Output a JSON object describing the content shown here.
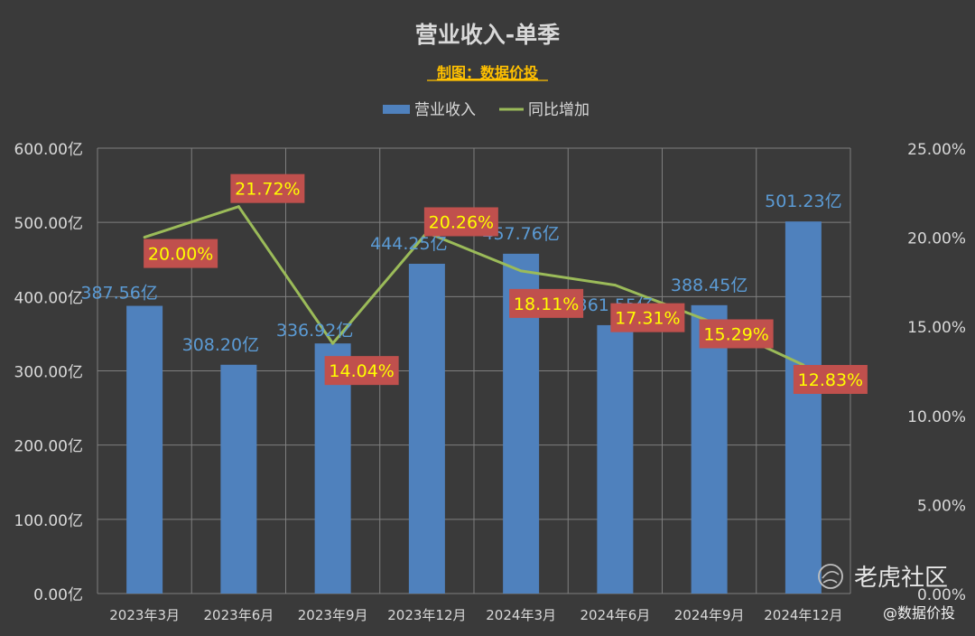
{
  "chart_data": {
    "type": "bar",
    "title": "营业收入-单季",
    "subtitle": "制图：数据价投",
    "categories": [
      "2023年3月",
      "2023年6月",
      "2023年9月",
      "2023年12月",
      "2024年3月",
      "2024年6月",
      "2024年9月",
      "2024年12月"
    ],
    "series": [
      {
        "name": "营业收入",
        "type": "bar",
        "axis": "left",
        "values": [
          387.56,
          308.2,
          336.92,
          444.25,
          457.76,
          361.55,
          388.45,
          501.23
        ],
        "labels": [
          "387.56亿",
          "308.20亿",
          "336.92亿",
          "444.25亿",
          "457.76亿",
          "361.55亿",
          "388.45亿",
          "501.23亿"
        ],
        "color": "#4f81bd"
      },
      {
        "name": "同比增加",
        "type": "line",
        "axis": "right",
        "values": [
          20.0,
          21.72,
          14.04,
          20.26,
          18.11,
          17.31,
          15.29,
          12.83
        ],
        "labels": [
          "20.00%",
          "21.72%",
          "14.04%",
          "20.26%",
          "18.11%",
          "17.31%",
          "15.29%",
          "12.83%"
        ],
        "color": "#9bbb59"
      }
    ],
    "y_left": {
      "min": 0,
      "max": 600,
      "ticks": [
        "0.00亿",
        "100.00亿",
        "200.00亿",
        "300.00亿",
        "400.00亿",
        "500.00亿",
        "600.00亿"
      ]
    },
    "y_right": {
      "min": 0,
      "max": 25,
      "ticks": [
        "0.00%",
        "5.00%",
        "10.00%",
        "15.00%",
        "20.00%",
        "25.00%"
      ]
    },
    "legend_position": "top-center",
    "grid": true
  },
  "watermark": {
    "logo_text": "老虎社区",
    "handle": "@数据价投"
  },
  "colors": {
    "background": "#3a3a3a",
    "bar": "#4f81bd",
    "line": "#9bbb59",
    "bar_label": "#5b9bd5",
    "pct_label_bg": "#c0504d",
    "pct_label_text": "#ffff00",
    "subtitle": "#ffc000",
    "text": "#d9d9d9",
    "grid": "#7f7f7f"
  }
}
